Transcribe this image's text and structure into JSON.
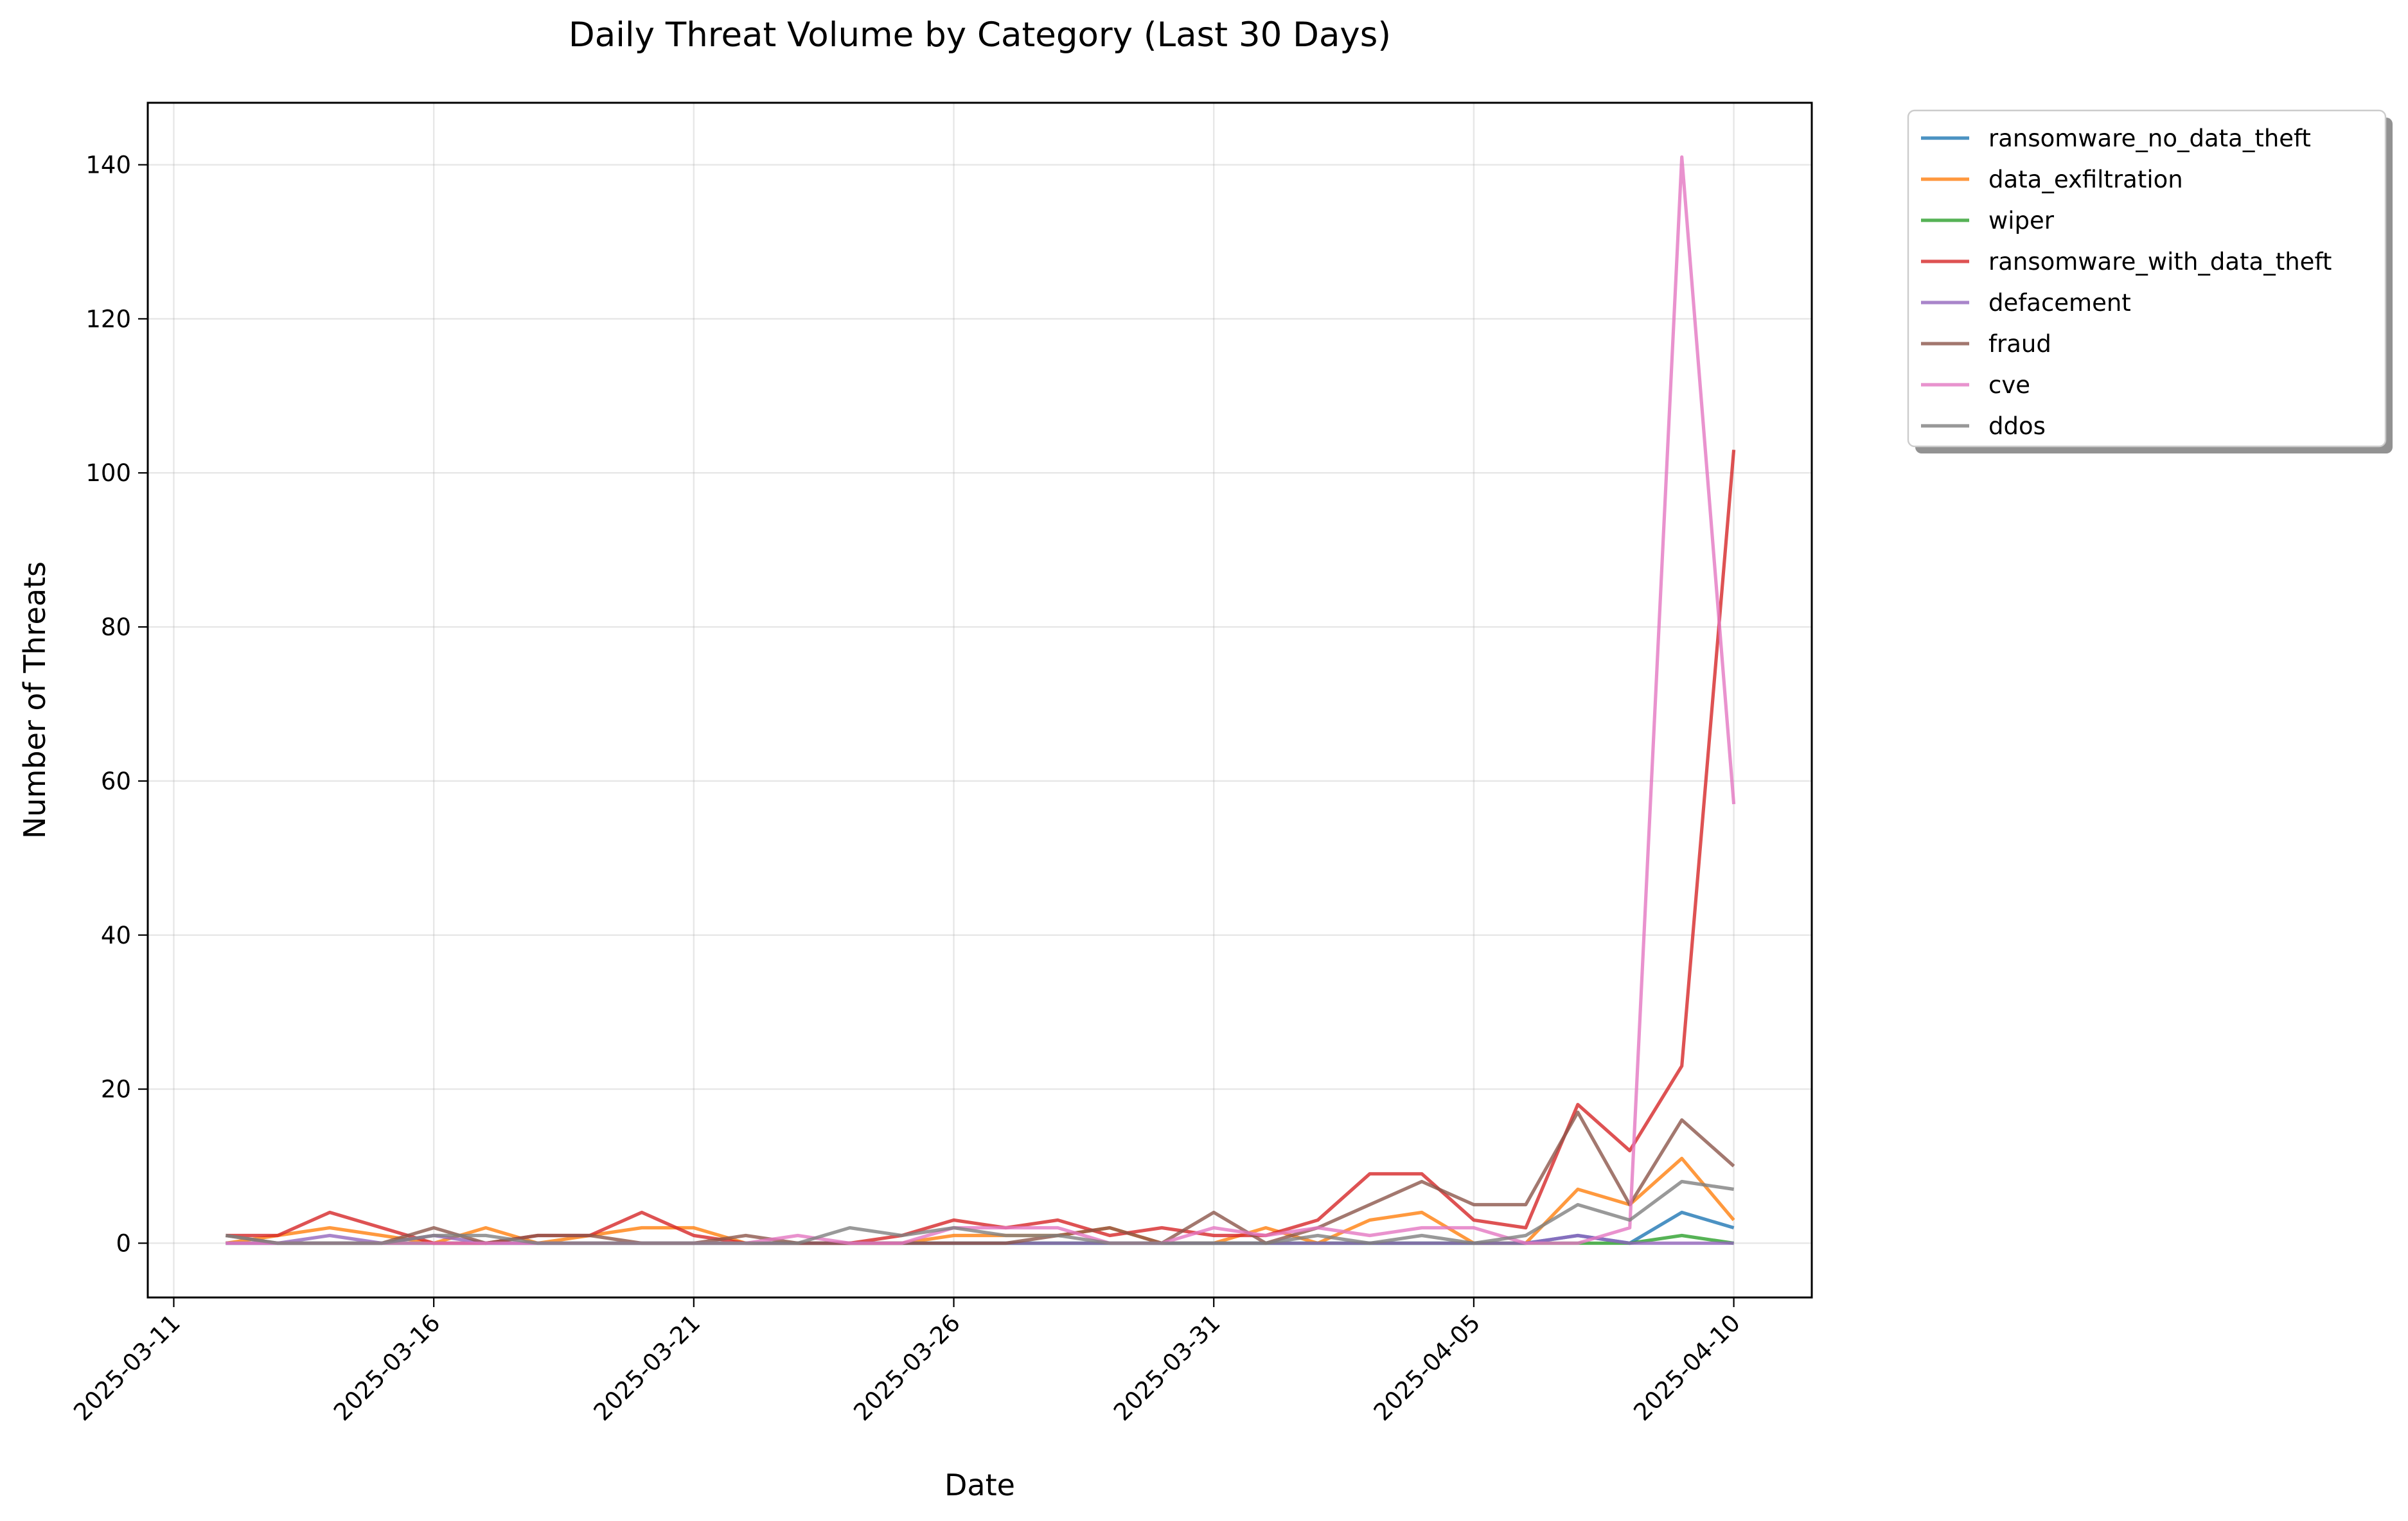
{
  "chart_data": {
    "type": "line",
    "title": "Daily Threat Volume by Category (Last 30 Days)",
    "xlabel": "Date",
    "ylabel": "Number of Threats",
    "x": [
      "2025-03-12",
      "2025-03-13",
      "2025-03-14",
      "2025-03-15",
      "2025-03-16",
      "2025-03-17",
      "2025-03-18",
      "2025-03-19",
      "2025-03-20",
      "2025-03-21",
      "2025-03-22",
      "2025-03-23",
      "2025-03-24",
      "2025-03-25",
      "2025-03-26",
      "2025-03-27",
      "2025-03-28",
      "2025-03-29",
      "2025-03-30",
      "2025-03-31",
      "2025-04-01",
      "2025-04-02",
      "2025-04-03",
      "2025-04-04",
      "2025-04-05",
      "2025-04-06",
      "2025-04-07",
      "2025-04-08",
      "2025-04-09",
      "2025-04-10"
    ],
    "x_ticks": [
      "2025-03-11",
      "2025-03-16",
      "2025-03-21",
      "2025-03-26",
      "2025-03-31",
      "2025-04-05",
      "2025-04-10"
    ],
    "xlim": [
      "2025-03-10T12:00",
      "2025-04-11T12:00"
    ],
    "ylim": [
      -7.05,
      148.05
    ],
    "y_ticks": [
      0,
      20,
      40,
      60,
      80,
      100,
      120,
      140
    ],
    "grid": true,
    "legend_position": "outside-top-right",
    "series": [
      {
        "name": "ransomware_no_data_theft",
        "color": "#1f77b4",
        "values": [
          0,
          0,
          0,
          0,
          0,
          0,
          0,
          0,
          0,
          0,
          0,
          0,
          0,
          0,
          0,
          0,
          0,
          0,
          0,
          0,
          0,
          0,
          0,
          0,
          0,
          0,
          1,
          0,
          4,
          2
        ]
      },
      {
        "name": "data_exfiltration",
        "color": "#ff7f0e",
        "values": [
          0,
          1,
          2,
          1,
          0,
          2,
          0,
          1,
          2,
          2,
          0,
          0,
          0,
          0,
          1,
          1,
          1,
          2,
          0,
          0,
          2,
          0,
          3,
          4,
          0,
          0,
          7,
          5,
          11,
          3
        ]
      },
      {
        "name": "wiper",
        "color": "#2ca02c",
        "values": [
          0,
          0,
          0,
          0,
          0,
          0,
          0,
          0,
          0,
          0,
          0,
          0,
          0,
          0,
          0,
          0,
          0,
          0,
          0,
          0,
          0,
          0,
          0,
          0,
          0,
          0,
          0,
          0,
          1,
          0
        ]
      },
      {
        "name": "ransomware_with_data_theft",
        "color": "#d62728",
        "values": [
          1,
          1,
          4,
          2,
          0,
          0,
          1,
          1,
          4,
          1,
          0,
          0,
          0,
          1,
          3,
          2,
          3,
          1,
          2,
          1,
          1,
          3,
          9,
          9,
          3,
          2,
          18,
          12,
          23,
          103
        ]
      },
      {
        "name": "defacement",
        "color": "#9467bd",
        "values": [
          0,
          0,
          1,
          0,
          1,
          0,
          0,
          0,
          0,
          0,
          0,
          0,
          0,
          0,
          0,
          0,
          0,
          0,
          0,
          0,
          0,
          0,
          0,
          0,
          0,
          0,
          1,
          0,
          0,
          0
        ]
      },
      {
        "name": "fraud",
        "color": "#8c564b",
        "values": [
          1,
          0,
          0,
          0,
          2,
          0,
          1,
          1,
          0,
          0,
          1,
          0,
          0,
          0,
          0,
          0,
          1,
          2,
          0,
          4,
          0,
          2,
          5,
          8,
          5,
          5,
          17,
          5,
          16,
          10
        ]
      },
      {
        "name": "cve",
        "color": "#e377c2",
        "values": [
          0,
          0,
          0,
          0,
          0,
          0,
          0,
          0,
          0,
          0,
          0,
          1,
          0,
          0,
          2,
          2,
          2,
          0,
          0,
          2,
          1,
          2,
          1,
          2,
          2,
          0,
          0,
          2,
          141,
          57
        ]
      },
      {
        "name": "ddos",
        "color": "#7f7f7f",
        "values": [
          1,
          0,
          0,
          0,
          1,
          1,
          0,
          0,
          0,
          0,
          0,
          0,
          2,
          1,
          2,
          1,
          1,
          0,
          0,
          0,
          0,
          1,
          0,
          1,
          0,
          1,
          5,
          3,
          8,
          7
        ]
      }
    ]
  }
}
